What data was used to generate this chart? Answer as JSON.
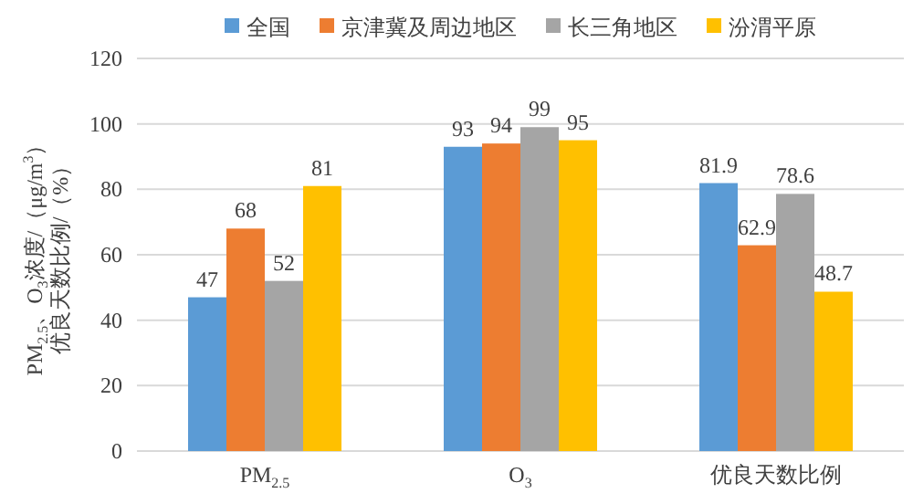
{
  "chart_data": {
    "type": "bar",
    "ylabel": "PM$_{2.5}$、O$_{3}$浓度/（μg/m$^{3}$）优良天数比例/（%）",
    "categories": [
      "PM$_{2.5}$",
      "O$_{3}$",
      "优良天数比例"
    ],
    "series": [
      {
        "name": "全国",
        "color": "#5b9bd5",
        "values": [
          47,
          93,
          81.9
        ]
      },
      {
        "name": "京津冀及周边地区",
        "color": "#ed7d31",
        "values": [
          68,
          94,
          62.9
        ]
      },
      {
        "name": "长三角地区",
        "color": "#a5a5a5",
        "values": [
          52,
          99,
          78.6
        ]
      },
      {
        "name": "汾渭平原",
        "color": "#ffc000",
        "values": [
          81,
          95,
          48.7
        ]
      }
    ],
    "ylim": [
      0,
      120
    ],
    "yticks": [
      0,
      20,
      40,
      60,
      80,
      100,
      120
    ],
    "grid": "y",
    "legend": "top",
    "data_labels": true
  }
}
